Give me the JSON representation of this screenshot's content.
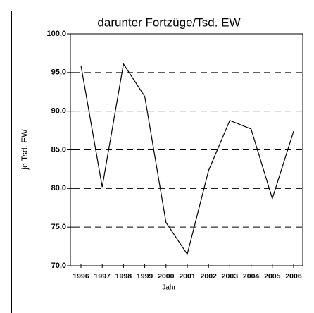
{
  "chart_data": {
    "type": "line",
    "title": "darunter Fortzüge/Tsd. EW",
    "x_label": "Jahr",
    "y_label": "je Tsd. EW",
    "categories": [
      "1996",
      "1997",
      "1998",
      "1999",
      "2000",
      "2001",
      "2002",
      "2003",
      "2004",
      "2005",
      "2006"
    ],
    "series": [
      {
        "name": "darunter Fortzüge/Tsd. EW",
        "color": "#000000",
        "values": [
          95.9,
          80.2,
          96.1,
          91.9,
          75.6,
          71.5,
          82.3,
          88.8,
          87.7,
          78.7,
          87.4
        ]
      }
    ],
    "ylim": [
      70,
      100
    ],
    "yticks": [
      {
        "value": 70,
        "label": "70,0"
      },
      {
        "value": 75,
        "label": "75,0"
      },
      {
        "value": 80,
        "label": "80,0"
      },
      {
        "value": 85,
        "label": "85,0"
      },
      {
        "value": 90,
        "label": "90,0"
      },
      {
        "value": 95,
        "label": "95,0"
      },
      {
        "value": 100,
        "label": "100,0"
      }
    ],
    "grid": true
  }
}
